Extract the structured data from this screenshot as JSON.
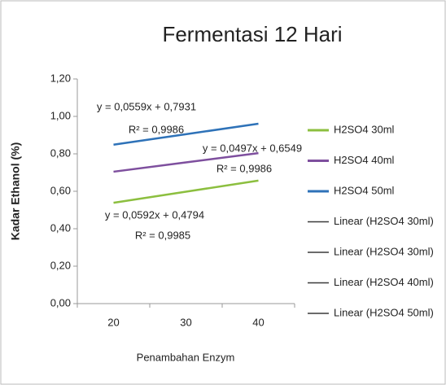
{
  "chart_data": {
    "type": "line",
    "title": "Fermentasi 12 Hari",
    "x_label": "Penambahan Enzym",
    "y_label": "Kadar Ethanol (%)",
    "categories": [
      "20",
      "30",
      "40"
    ],
    "series": [
      {
        "name": "H2SO4 30ml",
        "color": "#8cbf3f",
        "values": [
          0.5386,
          0.5978,
          0.657
        ]
      },
      {
        "name": "H2SO4 40ml",
        "color": "#7e4f9e",
        "values": [
          0.7046,
          0.7543,
          0.804
        ]
      },
      {
        "name": "H2SO4 50ml",
        "color": "#2e72b8",
        "values": [
          0.849,
          0.9049,
          0.9608
        ]
      }
    ],
    "trendline_legend": [
      "Linear (H2SO4 30ml)",
      "Linear (H2SO4 30ml)",
      "Linear (H2SO4 40ml)",
      "Linear (H2SO4 50ml)"
    ],
    "trendline_color": "#3a3a3a",
    "annotations": [
      "y = 0,0559x + 0,7931",
      "R² = 0,9986",
      "y = 0,0497x + 0,6549",
      "R² = 0,9986",
      "y = 0,0592x + 0,4794",
      "R² = 0,9985"
    ],
    "ylim": [
      0,
      1.2
    ],
    "yticks": [
      {
        "value": 0,
        "label": "0,00"
      },
      {
        "value": 0.2,
        "label": "0,20"
      },
      {
        "value": 0.4,
        "label": "0,40"
      },
      {
        "value": 0.6,
        "label": "0,60"
      },
      {
        "value": 0.8,
        "label": "0,80"
      },
      {
        "value": 1.0,
        "label": "1,00"
      },
      {
        "value": 1.2,
        "label": "1,20"
      }
    ],
    "grid": false,
    "legend": "right"
  }
}
